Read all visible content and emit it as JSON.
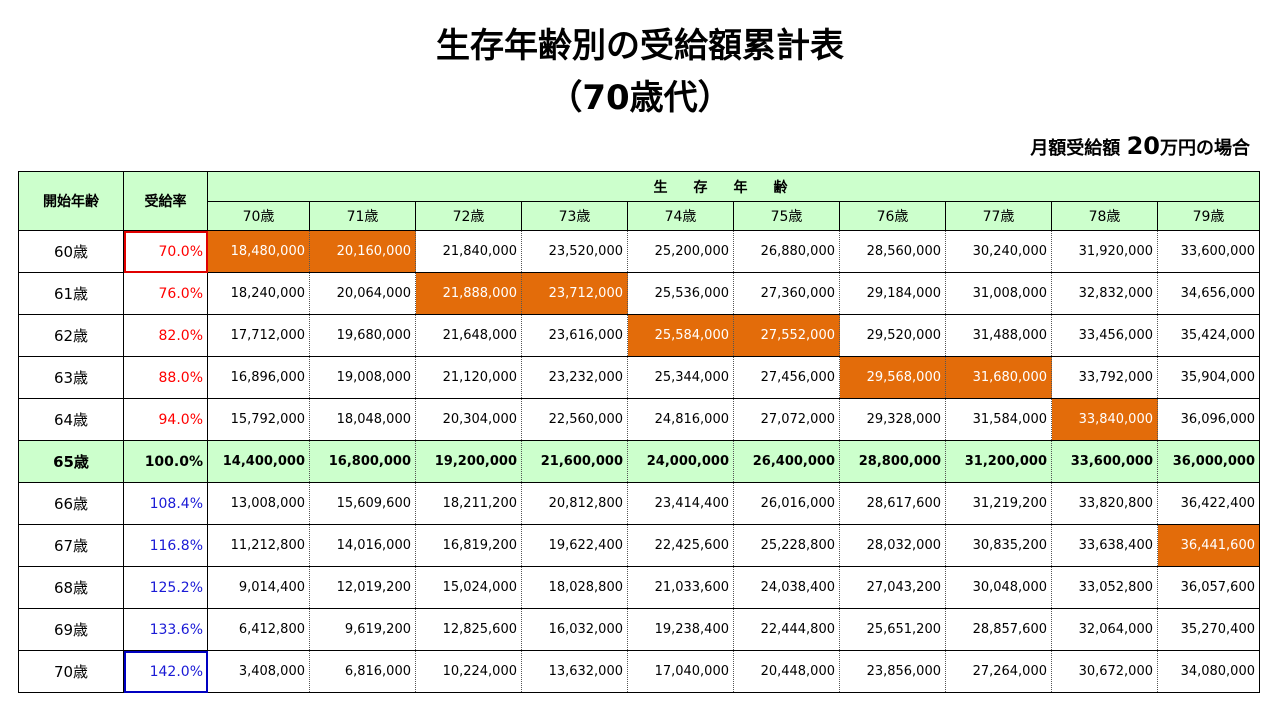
{
  "title_line1": "生存年齢別の受給額累計表",
  "title_line2": "（70歳代）",
  "note": {
    "prefix": "月額受給額",
    "amount": "20",
    "suffix": "万円の場合"
  },
  "header": {
    "start_age": "開始年齢",
    "rate": "受給率",
    "group": "生存年齢",
    "columns": [
      "70歳",
      "71歳",
      "72歳",
      "73歳",
      "74歳",
      "75歳",
      "76歳",
      "77歳",
      "78歳",
      "79歳"
    ]
  },
  "rows": [
    {
      "age": "60歳",
      "rate": "70.0%",
      "values": [
        "18,480,000",
        "20,160,000",
        "21,840,000",
        "23,520,000",
        "25,200,000",
        "26,880,000",
        "28,560,000",
        "30,240,000",
        "31,920,000",
        "33,600,000"
      ]
    },
    {
      "age": "61歳",
      "rate": "76.0%",
      "values": [
        "18,240,000",
        "20,064,000",
        "21,888,000",
        "23,712,000",
        "25,536,000",
        "27,360,000",
        "29,184,000",
        "31,008,000",
        "32,832,000",
        "34,656,000"
      ]
    },
    {
      "age": "62歳",
      "rate": "82.0%",
      "values": [
        "17,712,000",
        "19,680,000",
        "21,648,000",
        "23,616,000",
        "25,584,000",
        "27,552,000",
        "29,520,000",
        "31,488,000",
        "33,456,000",
        "35,424,000"
      ]
    },
    {
      "age": "63歳",
      "rate": "88.0%",
      "values": [
        "16,896,000",
        "19,008,000",
        "21,120,000",
        "23,232,000",
        "25,344,000",
        "27,456,000",
        "29,568,000",
        "31,680,000",
        "33,792,000",
        "35,904,000"
      ]
    },
    {
      "age": "64歳",
      "rate": "94.0%",
      "values": [
        "15,792,000",
        "18,048,000",
        "20,304,000",
        "22,560,000",
        "24,816,000",
        "27,072,000",
        "29,328,000",
        "31,584,000",
        "33,840,000",
        "36,096,000"
      ]
    },
    {
      "age": "65歳",
      "rate": "100.0%",
      "values": [
        "14,400,000",
        "16,800,000",
        "19,200,000",
        "21,600,000",
        "24,000,000",
        "26,400,000",
        "28,800,000",
        "31,200,000",
        "33,600,000",
        "36,000,000"
      ]
    },
    {
      "age": "66歳",
      "rate": "108.4%",
      "values": [
        "13,008,000",
        "15,609,600",
        "18,211,200",
        "20,812,800",
        "23,414,400",
        "26,016,000",
        "28,617,600",
        "31,219,200",
        "33,820,800",
        "36,422,400"
      ]
    },
    {
      "age": "67歳",
      "rate": "116.8%",
      "values": [
        "11,212,800",
        "14,016,000",
        "16,819,200",
        "19,622,400",
        "22,425,600",
        "25,228,800",
        "28,032,000",
        "30,835,200",
        "33,638,400",
        "36,441,600"
      ]
    },
    {
      "age": "68歳",
      "rate": "125.2%",
      "values": [
        "9,014,400",
        "12,019,200",
        "15,024,000",
        "18,028,800",
        "21,033,600",
        "24,038,400",
        "27,043,200",
        "30,048,000",
        "33,052,800",
        "36,057,600"
      ]
    },
    {
      "age": "69歳",
      "rate": "133.6%",
      "values": [
        "6,412,800",
        "9,619,200",
        "12,825,600",
        "16,032,000",
        "19,238,400",
        "22,444,800",
        "25,651,200",
        "28,857,600",
        "32,064,000",
        "35,270,400"
      ]
    },
    {
      "age": "70歳",
      "rate": "142.0%",
      "values": [
        "3,408,000",
        "6,816,000",
        "10,224,000",
        "13,632,000",
        "17,040,000",
        "20,448,000",
        "23,856,000",
        "27,264,000",
        "30,672,000",
        "34,080,000"
      ]
    }
  ],
  "colors": {
    "highlight": "#e36c0a",
    "row65": "#ccffcc",
    "header": "#ccffcc",
    "rate_low": "#ff0000",
    "rate_high": "#1a1ad6"
  }
}
